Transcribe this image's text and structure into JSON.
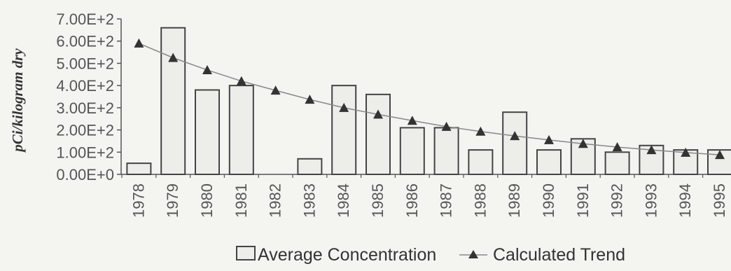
{
  "chart_data": {
    "type": "bar",
    "ylabel": "pCi/kilogram dry",
    "xlabel": "",
    "categories": [
      "1978",
      "1979",
      "1980",
      "1981",
      "1982",
      "1983",
      "1984",
      "1985",
      "1986",
      "1987",
      "1988",
      "1989",
      "1990",
      "1991",
      "1992",
      "1993",
      "1994",
      "1995"
    ],
    "series": [
      {
        "name": "Average Concentration",
        "kind": "bar",
        "values": [
          50,
          660,
          380,
          400,
          null,
          70,
          400,
          360,
          210,
          210,
          110,
          280,
          110,
          160,
          100,
          130,
          110,
          110
        ]
      },
      {
        "name": "Calculated Trend",
        "kind": "line",
        "marker": "triangle",
        "values": [
          590,
          525,
          470,
          420,
          378,
          337,
          300,
          270,
          242,
          215,
          193,
          173,
          155,
          138,
          123,
          110,
          98,
          88
        ]
      }
    ],
    "ylim": [
      0,
      700
    ],
    "yticks": [
      0,
      100,
      200,
      300,
      400,
      500,
      600,
      700
    ],
    "ytick_labels": [
      "0.00E+0",
      "1.00E+2",
      "2.00E+2",
      "3.00E+2",
      "4.00E+2",
      "5.00E+2",
      "6.00E+2",
      "7.00E+2"
    ],
    "grid": false,
    "legend_position": "bottom"
  },
  "colors": {
    "background": "#f4f4f1",
    "bar_fill": "#ededea",
    "bar_stroke": "#444444",
    "trend_line": "#888888",
    "trend_marker": "#333333",
    "axis": "#555555"
  }
}
